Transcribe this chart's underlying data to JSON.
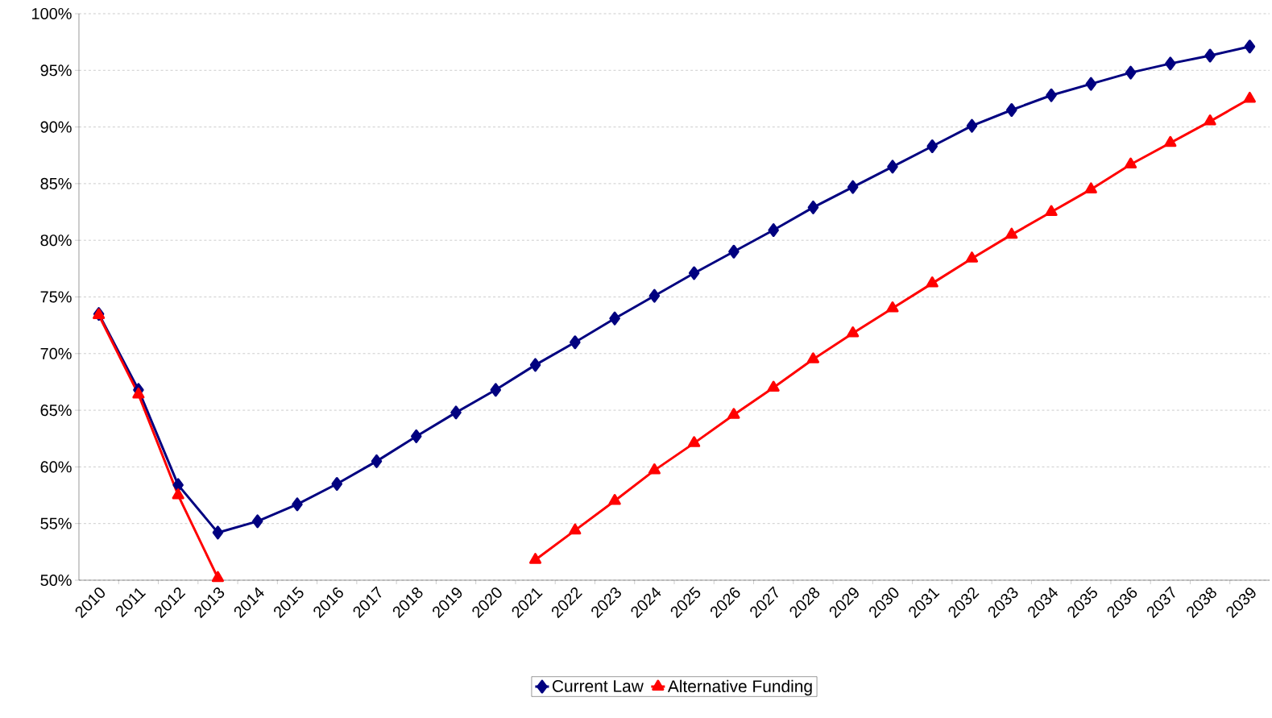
{
  "chart_data": {
    "type": "line",
    "categories": [
      "2010",
      "2011",
      "2012",
      "2013",
      "2014",
      "2015",
      "2016",
      "2017",
      "2018",
      "2019",
      "2020",
      "2021",
      "2022",
      "2023",
      "2024",
      "2025",
      "2026",
      "2027",
      "2028",
      "2029",
      "2030",
      "2031",
      "2032",
      "2033",
      "2034",
      "2035",
      "2036",
      "2037",
      "2038",
      "2039"
    ],
    "series": [
      {
        "name": "Current Law",
        "color": "#000080",
        "marker": "diamond",
        "values": [
          73.5,
          66.8,
          58.4,
          54.2,
          55.2,
          56.7,
          58.5,
          60.5,
          62.7,
          64.8,
          66.8,
          69.0,
          71.0,
          73.1,
          75.1,
          77.1,
          79.0,
          80.9,
          82.9,
          84.7,
          86.5,
          88.3,
          90.1,
          91.5,
          92.8,
          93.8,
          94.8,
          95.6,
          96.3,
          97.1
        ]
      },
      {
        "name": "Alternative Funding",
        "color": "#ff0000",
        "marker": "triangle",
        "values": [
          73.4,
          66.4,
          57.5,
          50.2,
          null,
          null,
          null,
          null,
          null,
          null,
          null,
          51.8,
          54.4,
          57.0,
          59.7,
          62.1,
          64.6,
          67.0,
          69.5,
          71.8,
          74.0,
          76.2,
          78.4,
          80.5,
          82.5,
          84.5,
          86.7,
          88.6,
          90.5,
          92.5
        ]
      }
    ],
    "ylim": [
      50,
      100
    ],
    "yticks": [
      {
        "value": 50,
        "label": "50%"
      },
      {
        "value": 55,
        "label": "55%"
      },
      {
        "value": 60,
        "label": "60%"
      },
      {
        "value": 65,
        "label": "65%"
      },
      {
        "value": 70,
        "label": "70%"
      },
      {
        "value": 75,
        "label": "75%"
      },
      {
        "value": 80,
        "label": "80%"
      },
      {
        "value": 85,
        "label": "85%"
      },
      {
        "value": 90,
        "label": "90%"
      },
      {
        "value": 95,
        "label": "95%"
      },
      {
        "value": 100,
        "label": "100%"
      }
    ],
    "grid": "y",
    "legend": "bottom",
    "line_style": "solid"
  }
}
